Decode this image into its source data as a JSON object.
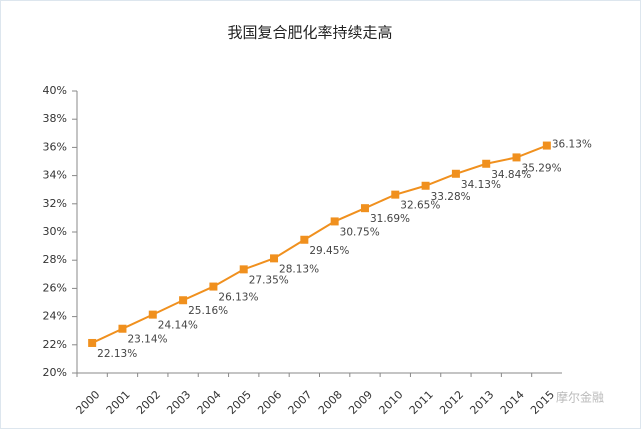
{
  "chart_data": {
    "type": "line",
    "title": "我国复合肥化率持续走高",
    "categories": [
      "2000",
      "2001",
      "2002",
      "2003",
      "2004",
      "2005",
      "2006",
      "2007",
      "2008",
      "2009",
      "2010",
      "2011",
      "2012",
      "2013",
      "2014",
      "2015"
    ],
    "series": [
      {
        "color": "#f0901e",
        "values": [
          22.13,
          23.14,
          24.14,
          25.16,
          26.13,
          27.35,
          28.13,
          29.45,
          30.75,
          31.69,
          32.65,
          33.28,
          34.13,
          34.84,
          35.29,
          36.13
        ],
        "value_labels": [
          "22.13%",
          "23.14%",
          "24.14%",
          "25.16%",
          "26.13%",
          "27.35%",
          "28.13%",
          "29.45%",
          "30.75%",
          "31.69%",
          "32.65%",
          "33.28%",
          "34.13%",
          "34.84%",
          "35.29%",
          "36.13%"
        ]
      }
    ],
    "ylim": [
      20,
      40
    ],
    "yticks": [
      {
        "value": 20,
        "label": "20%"
      },
      {
        "value": 22,
        "label": "22%"
      },
      {
        "value": 24,
        "label": "24%"
      },
      {
        "value": 26,
        "label": "26%"
      },
      {
        "value": 28,
        "label": "28%"
      },
      {
        "value": 30,
        "label": "30%"
      },
      {
        "value": 32,
        "label": "32%"
      },
      {
        "value": 34,
        "label": "34%"
      },
      {
        "value": 36,
        "label": "36%"
      },
      {
        "value": 38,
        "label": "38%"
      },
      {
        "value": 40,
        "label": "40%"
      }
    ],
    "watermark": "摩尔金融"
  }
}
